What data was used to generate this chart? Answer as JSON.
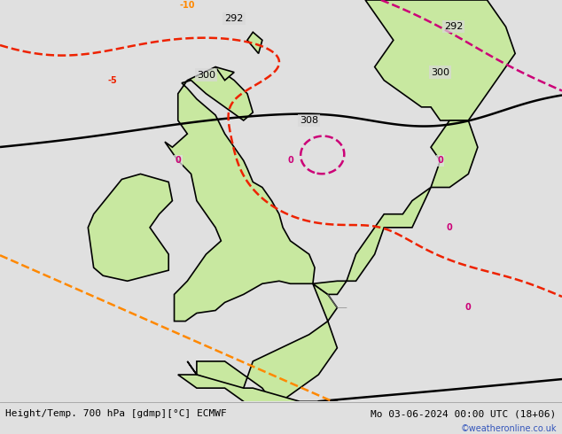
{
  "title_left": "Height/Temp. 700 hPa [gdmp][°C] ECMWF",
  "title_right": "Mo 03-06-2024 00:00 UTC (18+06)",
  "credit": "©weatheronline.co.uk",
  "background_color": "#e0e0e0",
  "sea_color": "#d8d8d8",
  "land_color": "#c8e8a0",
  "land_color_gray": "#c0c0c0",
  "border_color": "#888888",
  "coastline_color": "#000000",
  "coastline_linewidth": 1.2,
  "fig_width": 6.34,
  "fig_height": 4.9,
  "dpi": 100,
  "bottom_bar_color": "#ffffff",
  "title_color": "#000000",
  "credit_color": "#3355bb",
  "map_extent": [
    -15.0,
    15.0,
    47.0,
    62.0
  ],
  "geo_color": "#000000",
  "geo_linewidth": 1.8,
  "temp_orange_color": "#ff8800",
  "temp_red_color": "#ee2200",
  "temp_pink_color": "#cc0077",
  "temp_linewidth": 1.8,
  "font_size_labels": 7,
  "font_size_title": 8,
  "font_size_credit": 7
}
